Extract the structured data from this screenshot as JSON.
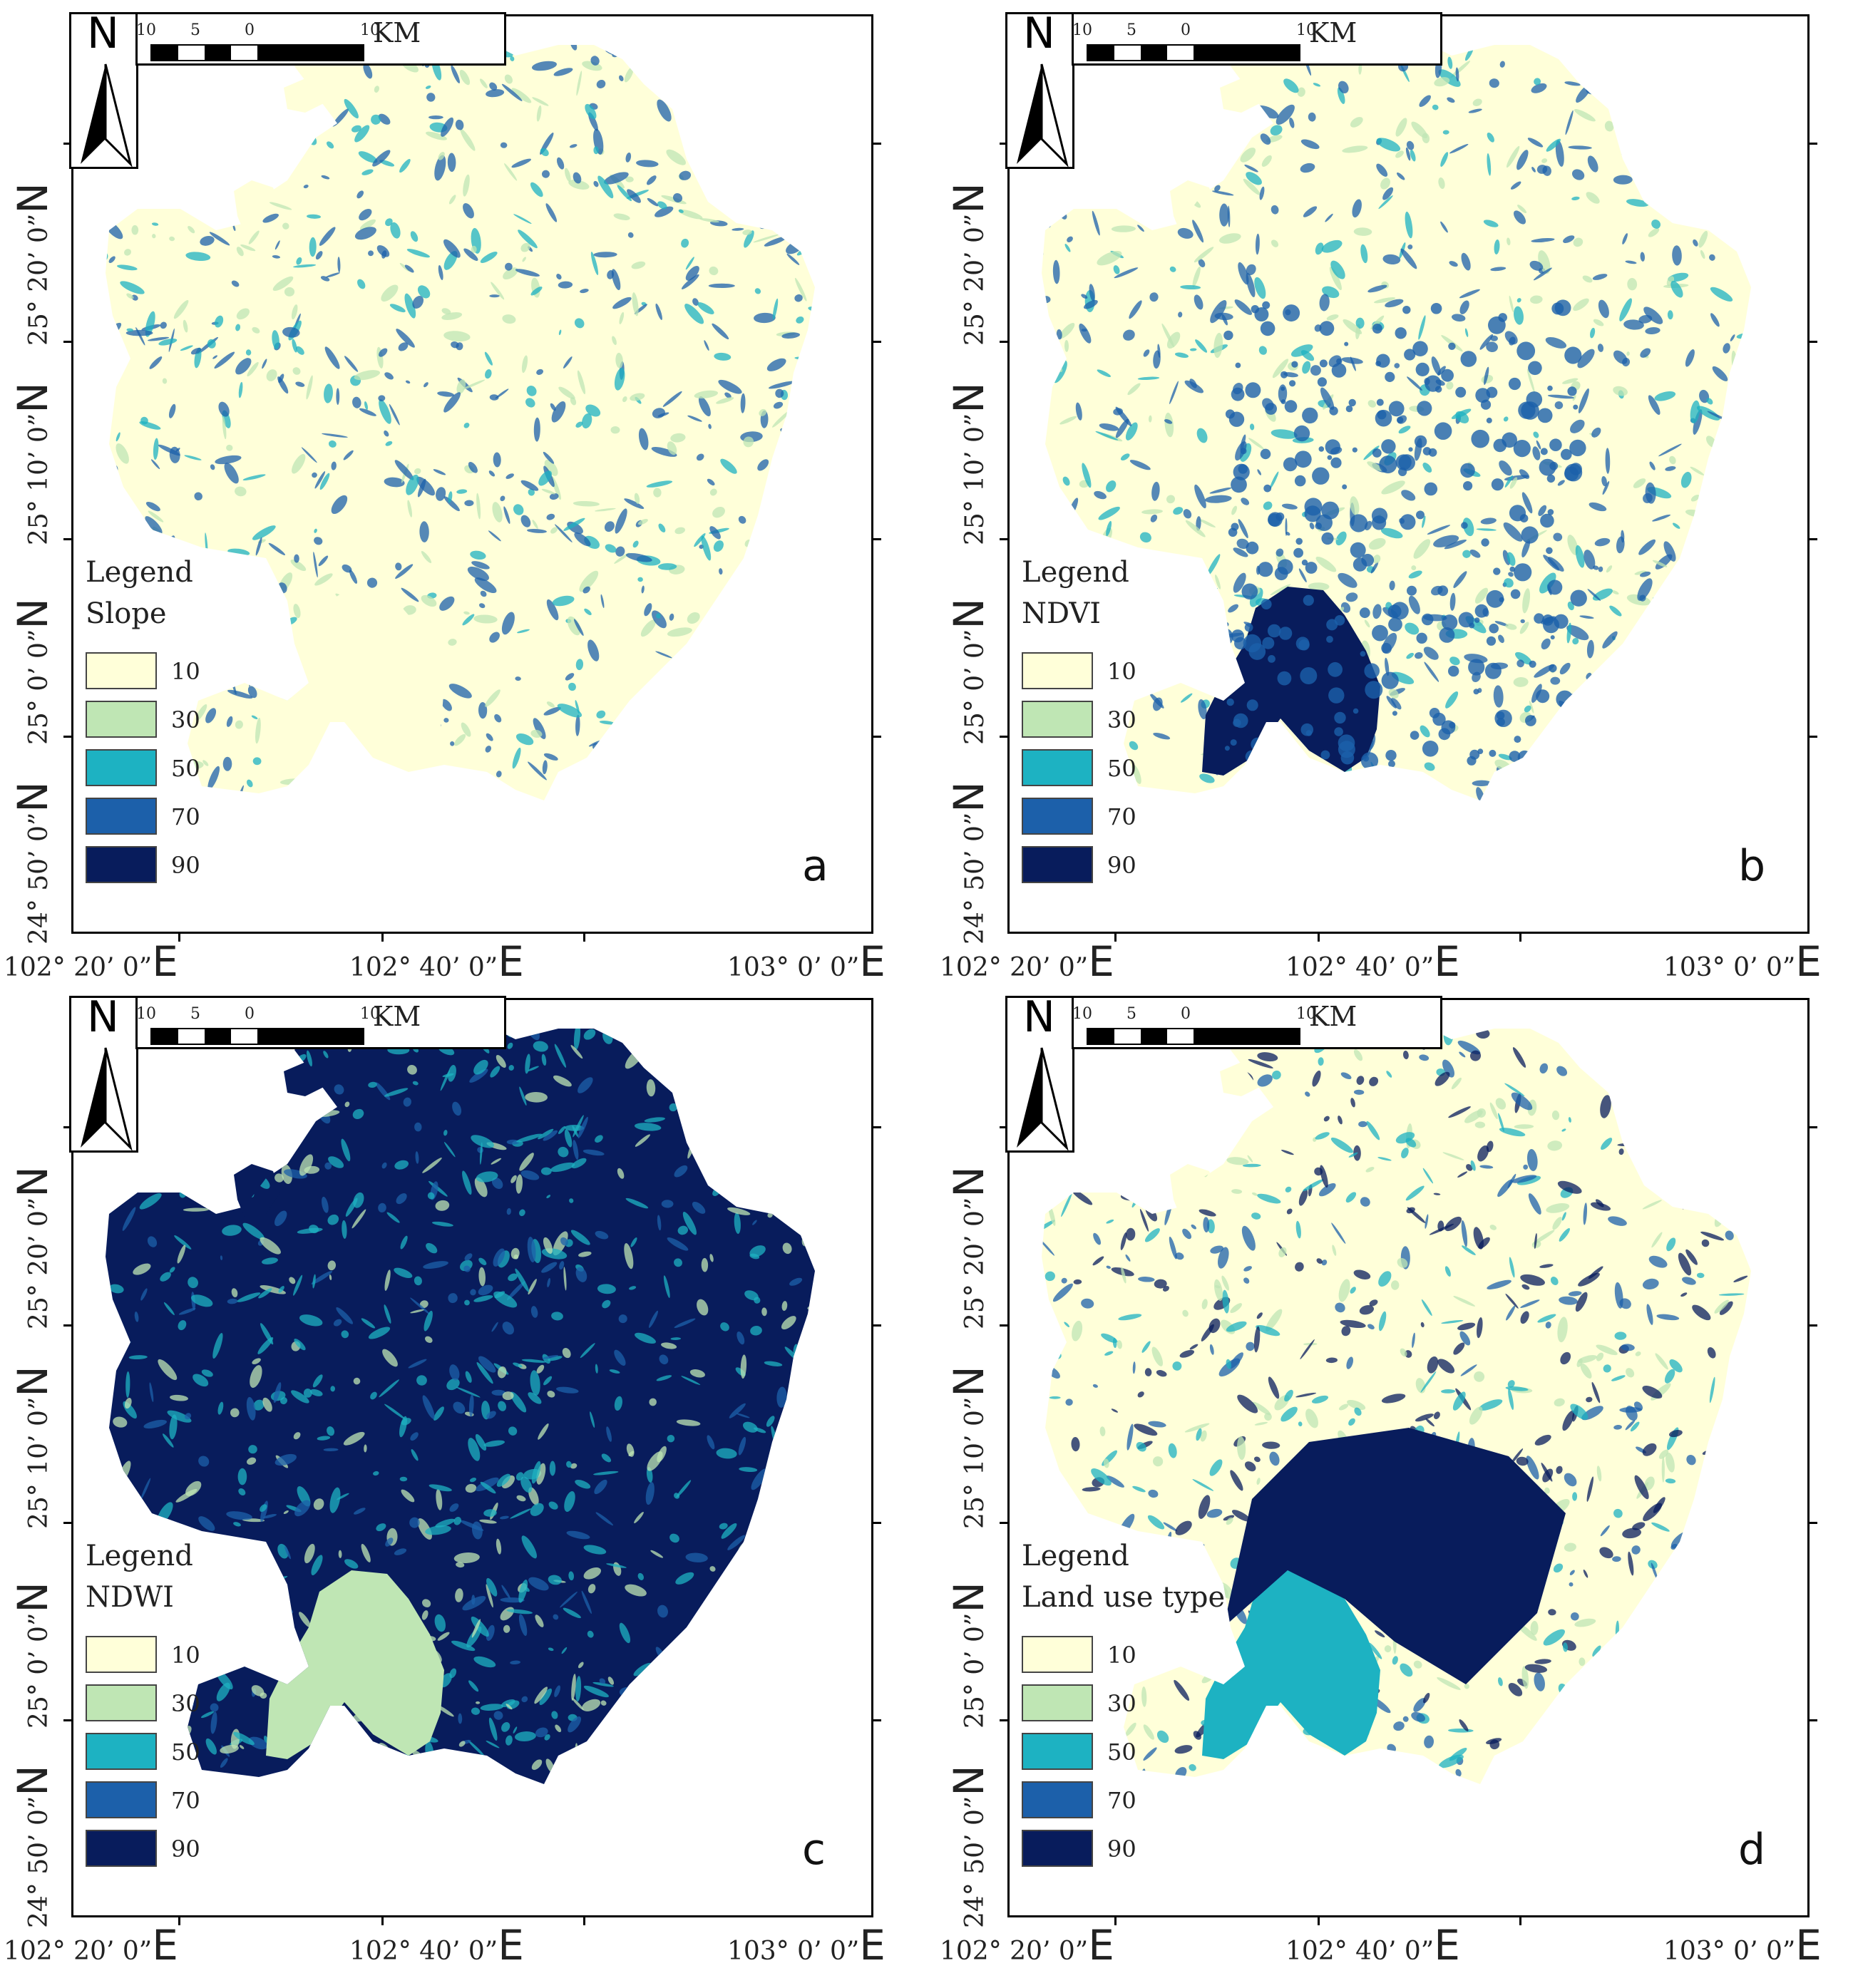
{
  "colors": {
    "c10": "#FFFFD9",
    "c30": "#BFE6B4",
    "c50": "#1DB2C2",
    "c70": "#1C60AA",
    "c90": "#081C5C"
  },
  "scale": {
    "ticks": [
      "10",
      "5",
      "0",
      "10"
    ],
    "unit": "KM"
  },
  "north_label": "N",
  "legend_heading": "Legend",
  "legend_values": [
    "10",
    "30",
    "50",
    "70",
    "90"
  ],
  "lat_labels": [
    {
      "deg": "25°",
      "min": "20’ 0”",
      "hemi": "N"
    },
    {
      "deg": "25°",
      "min": "10’ 0”",
      "hemi": "N"
    },
    {
      "deg": "25°",
      "min": "0’ 0”",
      "hemi": "N"
    },
    {
      "deg": "24°",
      "min": "50’ 0”",
      "hemi": "N"
    }
  ],
  "lon_labels": [
    {
      "deg": "102°",
      "min": "20’ 0”",
      "hemi": "E"
    },
    {
      "deg": "102°",
      "min": "40’ 0”",
      "hemi": "E"
    },
    {
      "deg": "103°",
      "min": "0’ 0”",
      "hemi": "E"
    }
  ],
  "panels": [
    {
      "id": "a",
      "letter": "a",
      "layer": "Slope",
      "dominant": "c10",
      "secondary": "c70",
      "core": "c10"
    },
    {
      "id": "b",
      "letter": "b",
      "layer": "NDVI",
      "dominant": "c10",
      "secondary": "c70",
      "core": "c90"
    },
    {
      "id": "c",
      "letter": "c",
      "layer": "NDWI",
      "dominant": "c90",
      "secondary": "c50",
      "core": "c30"
    },
    {
      "id": "d",
      "letter": "d",
      "layer": "Land use type",
      "dominant": "c10",
      "secondary": "c90",
      "core": "c50"
    }
  ]
}
